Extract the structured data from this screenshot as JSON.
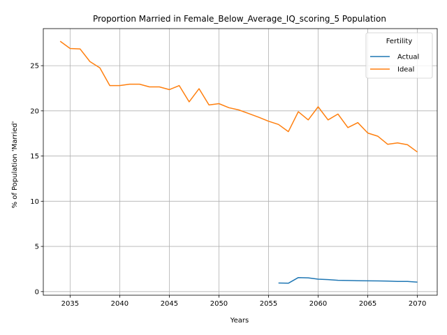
{
  "chart_data": {
    "type": "line",
    "title": "Proportion Married in Female_Below_Average_IQ_scoring_5 Population",
    "xlabel": "Years",
    "ylabel": "% of Population 'Married'",
    "xlim": [
      2032.3,
      2072.0
    ],
    "ylim": [
      -0.4,
      29.1
    ],
    "xticks": [
      2035,
      2040,
      2045,
      2050,
      2055,
      2060,
      2065,
      2070
    ],
    "yticks": [
      0,
      5,
      10,
      15,
      20,
      25
    ],
    "grid": true,
    "legend": {
      "title": "Fertility",
      "position": "top-right"
    },
    "series": [
      {
        "name": "Actual",
        "color": "#1f77b4",
        "x": [
          2056,
          2057,
          2058,
          2059,
          2060,
          2061,
          2062,
          2063,
          2064,
          2065,
          2066,
          2067,
          2068,
          2069,
          2070
        ],
        "y": [
          0.95,
          0.93,
          1.55,
          1.52,
          1.38,
          1.33,
          1.25,
          1.23,
          1.21,
          1.19,
          1.18,
          1.16,
          1.13,
          1.12,
          1.05
        ]
      },
      {
        "name": "Ideal",
        "color": "#ff7f0e",
        "x": [
          2034,
          2035,
          2036,
          2037,
          2038,
          2039,
          2040,
          2041,
          2042,
          2043,
          2044,
          2045,
          2046,
          2047,
          2048,
          2049,
          2050,
          2051,
          2052,
          2053,
          2054,
          2055,
          2056,
          2057,
          2058,
          2059,
          2060,
          2061,
          2062,
          2063,
          2064,
          2065,
          2066,
          2067,
          2068,
          2069,
          2070
        ],
        "y": [
          27.7,
          26.9,
          26.85,
          25.45,
          24.75,
          22.8,
          22.8,
          22.95,
          22.95,
          22.65,
          22.65,
          22.35,
          22.8,
          21.0,
          22.45,
          20.65,
          20.8,
          20.35,
          20.1,
          19.7,
          19.3,
          18.85,
          18.5,
          17.7,
          19.9,
          19.0,
          20.45,
          19.0,
          19.65,
          18.15,
          18.7,
          17.55,
          17.2,
          16.3,
          16.45,
          16.25,
          15.45
        ]
      }
    ]
  }
}
